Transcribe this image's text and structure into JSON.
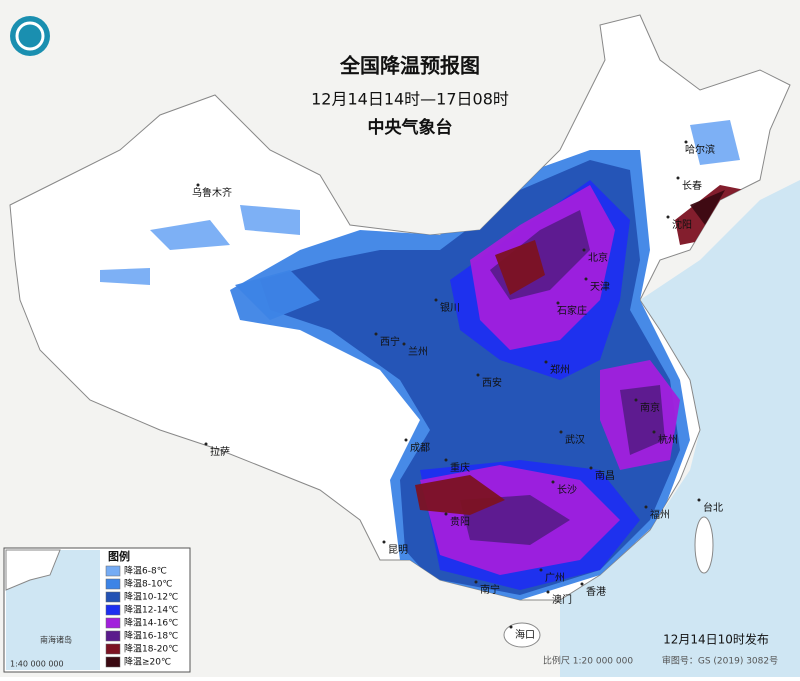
{
  "header": {
    "title": "全国降温预报图",
    "period": "12月14日14时—17日08时",
    "issuer": "中央气象台"
  },
  "legend": {
    "title": "图例",
    "items": [
      {
        "label": "降温6-8℃",
        "color": "#76acf4"
      },
      {
        "label": "降温8-10℃",
        "color": "#3d84e6"
      },
      {
        "label": "降温10-12℃",
        "color": "#2452b4"
      },
      {
        "label": "降温12-14℃",
        "color": "#1d2ff0"
      },
      {
        "label": "降温14-16℃",
        "color": "#a21fdc"
      },
      {
        "label": "降温16-18℃",
        "color": "#5b1b8c"
      },
      {
        "label": "降温18-20℃",
        "color": "#7c1222"
      },
      {
        "label": "降温≥20℃",
        "color": "#3b0a12"
      }
    ]
  },
  "cities": [
    "乌鲁木齐",
    "哈尔滨",
    "长春",
    "沈阳",
    "北京",
    "天津",
    "石家庄",
    "银川",
    "西宁",
    "兰州",
    "西安",
    "郑州",
    "南京",
    "杭州",
    "武汉",
    "成都",
    "重庆",
    "长沙",
    "南昌",
    "福州",
    "台北",
    "贵阳",
    "昆明",
    "南宁",
    "广州",
    "澳门",
    "香港",
    "海口",
    "拉萨"
  ],
  "inset": {
    "name": "南海诸岛",
    "scale": "1:40 000 000"
  },
  "footer": {
    "published": "12月14日10时发布",
    "scale": "比例尺 1:20 000 000",
    "review": "审图号：GS (2019) 3082号"
  }
}
